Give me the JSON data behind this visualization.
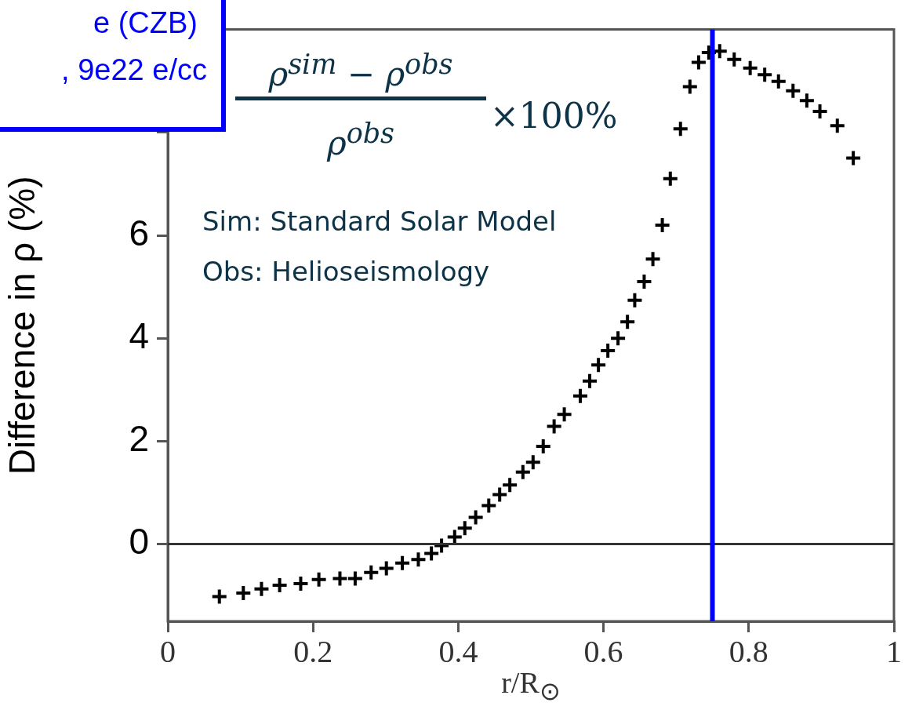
{
  "chart_data": {
    "type": "scatter",
    "ylabel": "Difference in ρ (%)",
    "xlabel": "r/R$_{⊙}$",
    "annotations": [
      "e (CZB)",
      ", 9e22 e/cc",
      "ρ$^{sim}$ − ρ$^{obs}$",
      "ρ$^{obs}$",
      "×100%",
      "Sim: Standard Solar Model",
      "Obs: Helioseismology"
    ],
    "x": [
      0.071,
      0.104,
      0.129,
      0.154,
      0.183,
      0.208,
      0.237,
      0.258,
      0.28,
      0.301,
      0.323,
      0.345,
      0.363,
      0.377,
      0.395,
      0.409,
      0.424,
      0.442,
      0.457,
      0.471,
      0.489,
      0.503,
      0.517,
      0.532,
      0.546,
      0.568,
      0.581,
      0.593,
      0.606,
      0.62,
      0.633,
      0.643,
      0.656,
      0.668,
      0.681,
      0.692,
      0.706,
      0.719,
      0.731,
      0.745,
      0.76,
      0.78,
      0.802,
      0.822,
      0.841,
      0.861,
      0.88,
      0.898,
      0.922,
      0.944
    ],
    "values": [
      -1.02,
      -0.95,
      -0.87,
      -0.8,
      -0.77,
      -0.69,
      -0.67,
      -0.67,
      -0.55,
      -0.47,
      -0.37,
      -0.3,
      -0.18,
      -0.03,
      0.14,
      0.31,
      0.52,
      0.75,
      0.96,
      1.15,
      1.4,
      1.59,
      1.9,
      2.29,
      2.52,
      2.88,
      3.17,
      3.48,
      3.76,
      4.0,
      4.32,
      4.74,
      5.1,
      5.54,
      6.2,
      7.1,
      8.07,
      8.89,
      9.36,
      9.55,
      9.58,
      9.42,
      9.25,
      9.12,
      8.99,
      8.81,
      8.62,
      8.41,
      8.13,
      7.5
    ],
    "color": "#000000",
    "marker": "cross",
    "xlim": [
      0,
      1
    ],
    "xticks": [
      0,
      0.2,
      0.4,
      0.6,
      0.8,
      1
    ],
    "ylim": [
      -1.5,
      10
    ],
    "yticks": [
      0,
      2,
      4,
      6,
      {
        "value": 8,
        "label": null
      },
      {
        "value": 10,
        "label": null
      }
    ],
    "ref_lines": [
      {
        "axis": "y",
        "value": 0,
        "color": "#333333"
      },
      {
        "axis": "x",
        "value": 0.75,
        "color": "#0000ff"
      }
    ],
    "grid": false,
    "legend": false
  }
}
